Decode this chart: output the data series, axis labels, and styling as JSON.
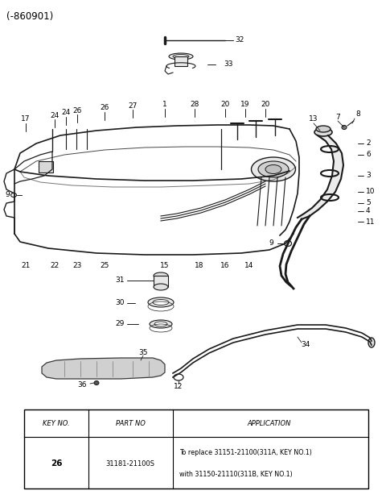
{
  "title": "(-860901)",
  "bg_color": "#ffffff",
  "line_color": "#1a1a1a",
  "table": {
    "key_no": "26",
    "part_no": "31181-21100S",
    "application_line1": "To replace 31151-21100(311A, KEY NO.1)",
    "application_line2": "with 31150-21110(311B, KEY NO.1)"
  }
}
